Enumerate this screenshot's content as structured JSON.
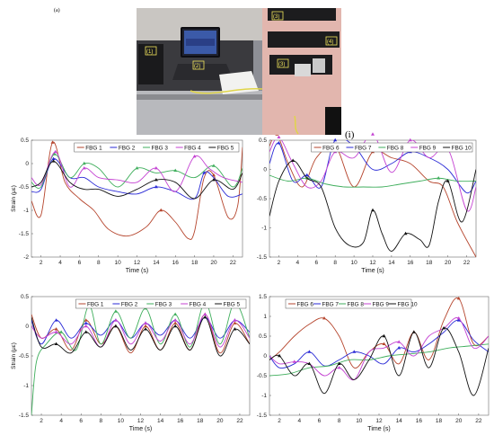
{
  "figure": {
    "panel_a": "(a)",
    "panel_i": "(i)"
  },
  "photo": {
    "labels": [
      "(1)",
      "(2)",
      "(3)",
      "(4)",
      "(3)"
    ]
  },
  "colors": {
    "FBG 1": "#b5442c",
    "FBG 2": "#2a2ad6",
    "FBG 3": "#3fae5c",
    "FBG 4": "#c442d2",
    "FBG 5": "#111111",
    "FBG 6": "#b5442c",
    "FBG 7": "#2a2ad6",
    "FBG 8": "#3fae5c",
    "FBG 9": "#c442d2",
    "FBG 10": "#111111"
  },
  "chart_data": [
    {
      "type": "line",
      "xlabel": "Time (s)",
      "ylabel": "Strain (με)",
      "xlim": [
        1,
        23
      ],
      "ylim": [
        -2,
        0.5
      ],
      "xticks": [
        2,
        4,
        6,
        8,
        10,
        12,
        14,
        16,
        18,
        20,
        22
      ],
      "yticks": [
        0.5,
        0,
        -0.5,
        -1,
        -1.5,
        -2
      ],
      "ytick_labels": [
        "0.5",
        "0",
        "-0.5",
        "-1",
        "-1.5",
        "-2"
      ],
      "legend_position": "top-right",
      "series": [
        {
          "name": "FBG 1",
          "x": [
            1,
            2,
            3.2,
            4.5,
            6,
            7.5,
            9,
            11,
            13,
            14.5,
            16,
            17.3,
            18,
            19,
            20,
            21.5,
            22.5,
            23
          ],
          "y": [
            -0.8,
            -1.1,
            0.45,
            -0.4,
            -0.75,
            -1.0,
            -1.4,
            -1.55,
            -1.35,
            -1.0,
            -1.25,
            -1.6,
            -1.45,
            -0.3,
            -0.25,
            -1.15,
            -0.9,
            0.35
          ]
        },
        {
          "name": "FBG 2",
          "x": [
            1,
            2,
            3.3,
            5,
            6.5,
            8,
            10,
            12,
            14,
            16,
            18,
            19,
            20,
            21.5,
            23
          ],
          "y": [
            -0.6,
            -0.55,
            0.1,
            -0.3,
            -0.3,
            -0.5,
            -0.6,
            -0.65,
            -0.5,
            -0.6,
            -0.75,
            -0.2,
            -0.3,
            -0.7,
            -0.65
          ]
        },
        {
          "name": "FBG 3",
          "x": [
            1,
            2,
            3.4,
            5,
            6.5,
            8,
            10,
            12,
            14,
            16,
            18,
            20,
            22,
            23
          ],
          "y": [
            -0.4,
            -0.5,
            0.2,
            -0.3,
            0.0,
            -0.1,
            -0.5,
            -0.1,
            -0.2,
            -0.15,
            -0.3,
            -0.05,
            -0.5,
            -0.1
          ]
        },
        {
          "name": "FBG 4",
          "x": [
            1,
            2,
            3.5,
            5,
            6.5,
            8,
            10,
            12,
            14,
            16,
            18,
            19.5,
            21,
            23
          ],
          "y": [
            -0.3,
            -0.45,
            0.25,
            -0.5,
            -0.1,
            -0.3,
            -0.35,
            -0.4,
            -0.1,
            -0.6,
            0.15,
            -0.1,
            -0.3,
            -0.4
          ]
        },
        {
          "name": "FBG 5",
          "x": [
            1,
            2,
            3.3,
            5,
            6.5,
            8,
            10,
            12,
            14,
            16,
            18,
            20,
            22,
            23
          ],
          "y": [
            -0.5,
            -0.4,
            0.05,
            -0.4,
            -0.55,
            -0.55,
            -0.7,
            -0.55,
            -0.35,
            -0.4,
            -0.75,
            -0.35,
            -0.55,
            -0.2
          ]
        }
      ]
    },
    {
      "type": "line",
      "xlabel": "Time (s)",
      "ylabel": "",
      "xlim": [
        1,
        23
      ],
      "ylim": [
        -1.5,
        0.5
      ],
      "xticks": [
        2,
        4,
        6,
        8,
        10,
        12,
        14,
        16,
        18,
        20,
        22
      ],
      "yticks": [
        0.5,
        0,
        -0.5,
        -1,
        -1.5
      ],
      "ytick_labels": [
        "0.5",
        "0",
        "-0.5",
        "-1",
        "-1.5"
      ],
      "legend_position": "top-right",
      "series": [
        {
          "name": "FBG 6",
          "x": [
            1,
            1.8,
            3,
            4.5,
            6,
            8,
            10,
            12,
            14,
            16,
            18,
            19.5,
            21,
            23
          ],
          "y": [
            0.4,
            0.6,
            0.1,
            -0.3,
            0.2,
            0.4,
            -0.3,
            0.3,
            0.2,
            0.1,
            -0.2,
            -0.3,
            -0.9,
            -1.5
          ]
        },
        {
          "name": "FBG 7",
          "x": [
            1,
            2,
            3.5,
            5,
            6.5,
            8,
            10,
            12,
            14,
            16,
            18,
            20,
            22,
            23
          ],
          "y": [
            0.1,
            0.45,
            -0.2,
            -0.1,
            -0.3,
            0.5,
            0.4,
            0.0,
            0.1,
            0.3,
            0.2,
            0.0,
            -0.4,
            -0.2
          ]
        },
        {
          "name": "FBG 8",
          "x": [
            1,
            3,
            5,
            7,
            9,
            11,
            13,
            15,
            17,
            19,
            21,
            23
          ],
          "y": [
            -0.1,
            -0.2,
            -0.15,
            -0.25,
            -0.3,
            -0.3,
            -0.3,
            -0.25,
            -0.2,
            -0.15,
            -0.2,
            -0.2
          ]
        },
        {
          "name": "FBG 9",
          "x": [
            1,
            2,
            3.5,
            5,
            6.5,
            8,
            10,
            12,
            14,
            16,
            18,
            20,
            22,
            23
          ],
          "y": [
            0.3,
            0.55,
            0.1,
            -0.3,
            -0.2,
            0.3,
            0.2,
            0.6,
            -0.05,
            0.5,
            0.2,
            0.35,
            -0.7,
            -0.3
          ]
        },
        {
          "name": "FBG 10",
          "x": [
            1,
            2,
            3.5,
            5,
            6.5,
            8,
            9.5,
            11,
            12,
            13,
            14,
            15.5,
            17,
            18,
            19,
            20,
            21.5,
            23
          ],
          "y": [
            -0.8,
            -0.2,
            0.15,
            -0.15,
            -0.3,
            -1.0,
            -1.3,
            -1.25,
            -0.7,
            -1.1,
            -1.4,
            -1.1,
            -1.2,
            -1.3,
            -0.55,
            -0.2,
            -0.9,
            0.0
          ]
        }
      ]
    },
    {
      "type": "line",
      "xlabel": "Time (s)",
      "ylabel": "Strain (με)",
      "xlim": [
        1,
        23
      ],
      "ylim": [
        -1.5,
        0.5
      ],
      "xticks": [
        2,
        4,
        6,
        8,
        10,
        12,
        14,
        16,
        18,
        20,
        22
      ],
      "yticks": [
        0.5,
        0,
        -0.5,
        -1,
        -1.5
      ],
      "ytick_labels": [
        "0.5",
        "0",
        "-0.5",
        "-1",
        "-1.5"
      ],
      "legend_position": "top-right",
      "series": [
        {
          "name": "FBG 1",
          "x": [
            1,
            2,
            3.5,
            5,
            6.5,
            8,
            9.5,
            11,
            12.5,
            14,
            15.5,
            17,
            18.5,
            20,
            21.5,
            23
          ],
          "y": [
            0.2,
            -0.2,
            -0.05,
            -0.4,
            0.1,
            -0.3,
            0.0,
            -0.45,
            0.0,
            -0.4,
            0.05,
            -0.4,
            0.2,
            -0.45,
            0.05,
            -0.3
          ]
        },
        {
          "name": "FBG 2",
          "x": [
            1,
            2,
            3.5,
            5,
            6.5,
            8,
            9.5,
            11,
            12.5,
            14,
            15.5,
            17,
            18.5,
            20,
            21.5,
            23
          ],
          "y": [
            0.1,
            -0.3,
            0.1,
            -0.2,
            0.05,
            -0.15,
            0.1,
            -0.2,
            0.05,
            -0.15,
            0.1,
            -0.2,
            0.15,
            -0.2,
            0.1,
            -0.1
          ]
        },
        {
          "name": "FBG 3",
          "x": [
            1,
            1.5,
            2.5,
            4,
            5.5,
            6.8,
            8,
            9.5,
            11,
            12.5,
            14,
            15.5,
            17,
            18.5,
            20,
            21.5,
            23
          ],
          "y": [
            -1.5,
            -0.6,
            -0.3,
            -0.1,
            -0.4,
            0.35,
            -0.3,
            0.25,
            -0.2,
            0.3,
            -0.3,
            0.2,
            -0.35,
            0.4,
            -0.3,
            0.4,
            -0.2
          ]
        },
        {
          "name": "FBG 4",
          "x": [
            1,
            2,
            3.5,
            5,
            6.5,
            8,
            9.5,
            11,
            12.5,
            14,
            15.5,
            17,
            18.5,
            20,
            21.5,
            23
          ],
          "y": [
            0.0,
            -0.2,
            -0.1,
            -0.3,
            0.0,
            -0.35,
            0.1,
            -0.3,
            0.05,
            -0.25,
            0.1,
            -0.3,
            0.2,
            -0.35,
            0.1,
            -0.2
          ]
        },
        {
          "name": "FBG 5",
          "x": [
            1,
            2,
            3.5,
            5,
            6.5,
            8,
            9.5,
            11,
            12.5,
            14,
            15.5,
            17,
            18.5,
            20,
            21.5,
            23
          ],
          "y": [
            0.15,
            -0.35,
            -0.3,
            -0.45,
            -0.1,
            -0.35,
            0.0,
            -0.4,
            -0.05,
            -0.4,
            0.0,
            -0.4,
            0.15,
            -0.5,
            -0.05,
            -0.3
          ]
        }
      ]
    },
    {
      "type": "line",
      "xlabel": "Time (s)",
      "ylabel": "",
      "xlim": [
        1,
        23
      ],
      "ylim": [
        -1.5,
        1.5
      ],
      "xticks": [
        2,
        4,
        6,
        8,
        10,
        12,
        14,
        16,
        18,
        20,
        22
      ],
      "yticks": [
        1.5,
        1,
        0.5,
        0,
        -0.5,
        -1,
        -1.5
      ],
      "ytick_labels": [
        "1.5",
        "1",
        "0.5",
        "0",
        "-0.5",
        "-1",
        "-1.5"
      ],
      "legend_position": "top-left",
      "series": [
        {
          "name": "FBG 6",
          "x": [
            1,
            2,
            3.5,
            5,
            6.5,
            8,
            9.5,
            11,
            12.5,
            14,
            15.5,
            17,
            18.5,
            20,
            21.5,
            23
          ],
          "y": [
            -0.1,
            0.1,
            0.5,
            0.8,
            0.95,
            0.5,
            -0.3,
            0.1,
            0.3,
            -0.2,
            0.6,
            -0.1,
            0.9,
            1.45,
            0.3,
            0.5
          ]
        },
        {
          "name": "FBG 7",
          "x": [
            1,
            2,
            3.5,
            5,
            6.5,
            8,
            9.5,
            11,
            12.5,
            14,
            15.5,
            17,
            18.5,
            20,
            21.5,
            23
          ],
          "y": [
            0.0,
            -0.3,
            -0.2,
            0.1,
            -0.25,
            -0.1,
            0.1,
            0.0,
            -0.2,
            0.2,
            0.1,
            0.3,
            0.6,
            0.9,
            0.4,
            0.1
          ]
        },
        {
          "name": "FBG 8",
          "x": [
            1,
            3,
            5,
            7,
            9,
            11,
            13,
            15,
            17,
            19,
            21,
            23
          ],
          "y": [
            -0.5,
            -0.45,
            -0.3,
            -0.25,
            -0.1,
            -0.1,
            0.0,
            0.05,
            0.1,
            0.2,
            0.25,
            0.3
          ]
        },
        {
          "name": "FBG 9",
          "x": [
            1,
            2,
            3.5,
            5,
            6.5,
            8,
            9.5,
            11,
            12.5,
            14,
            15.5,
            17,
            18.5,
            20,
            21.5,
            23
          ],
          "y": [
            0.0,
            -0.2,
            -0.15,
            -0.2,
            -0.5,
            -0.3,
            -0.6,
            0.1,
            0.2,
            0.35,
            0.0,
            0.5,
            0.7,
            0.95,
            0.2,
            0.5
          ]
        },
        {
          "name": "FBG 10",
          "x": [
            1,
            2,
            3.5,
            5,
            6.5,
            8,
            9.5,
            11,
            12.5,
            14,
            15.5,
            17,
            18.5,
            20,
            21.5,
            23
          ],
          "y": [
            -0.1,
            0.0,
            -0.5,
            -0.2,
            -0.95,
            -0.2,
            -0.6,
            -0.1,
            0.5,
            -0.5,
            0.6,
            -0.3,
            0.7,
            0.1,
            -1.0,
            0.2
          ]
        }
      ]
    }
  ]
}
